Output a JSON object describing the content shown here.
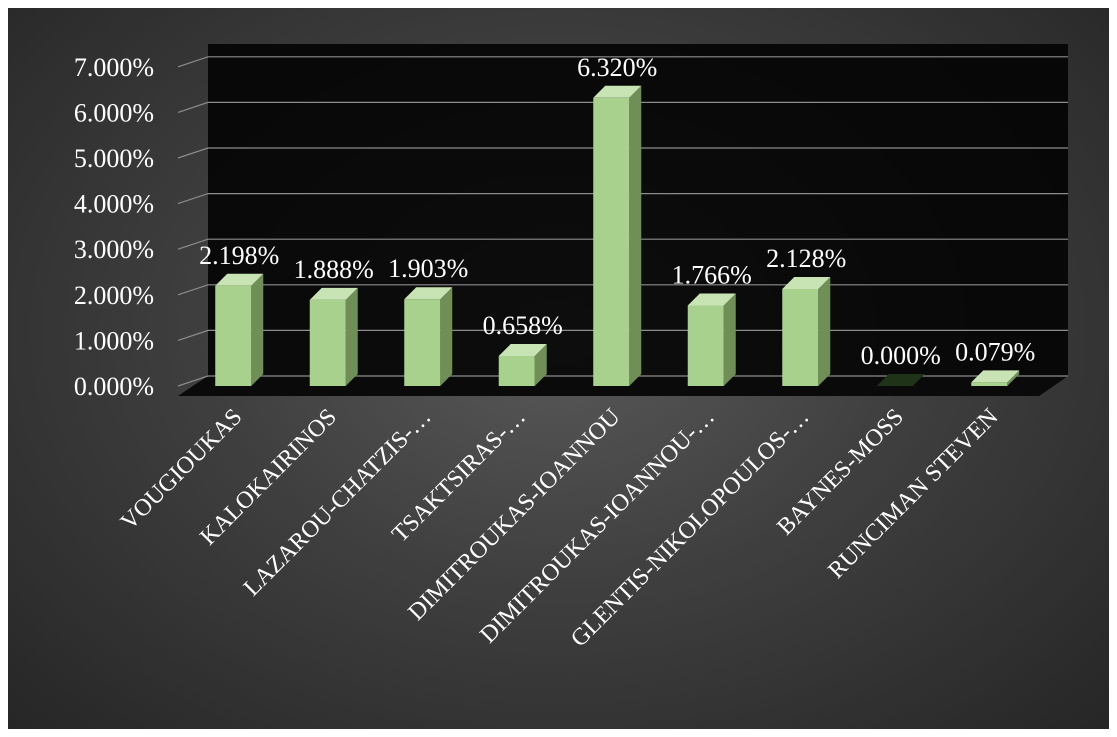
{
  "chart_data": {
    "type": "bar",
    "title": "",
    "xlabel": "",
    "ylabel": "",
    "categories": [
      "VOUGIOUKAS",
      "KALOKAIRINOS",
      "LAZAROU-CHATZIS-…",
      "TSAKTSIRAS-…",
      "DIMITROUKAS-IOANNOU",
      "DIMITROUKAS-IOANNOU-…",
      "GLENTIS-NIKOLOPOULOS-…",
      "BAYNES-MOSS",
      "RUNCIMAN STEVEN"
    ],
    "values": [
      2.198,
      1.888,
      1.903,
      0.658,
      6.32,
      1.766,
      2.128,
      0.0,
      0.079
    ],
    "data_labels": [
      "2.198%",
      "1.888%",
      "1.903%",
      "0.658%",
      "6.320%",
      "1.766%",
      "2.128%",
      "0.000%",
      "0.079%"
    ],
    "ylim": [
      0,
      7
    ],
    "yticks": [
      0,
      1,
      2,
      3,
      4,
      5,
      6,
      7
    ],
    "ytick_labels": [
      "0.000%",
      "1.000%",
      "2.000%",
      "3.000%",
      "4.000%",
      "5.000%",
      "6.000%",
      "7.000%"
    ],
    "grid": true,
    "legend": "none",
    "colors": {
      "bar_front": "#a9d18e",
      "bar_side": "#6f8f57",
      "bar_top": "#c9e4b4",
      "plot_background": "#000000",
      "chart_background": "#404040",
      "gridline": "#8c8c8c",
      "text": "#ffffff"
    }
  }
}
